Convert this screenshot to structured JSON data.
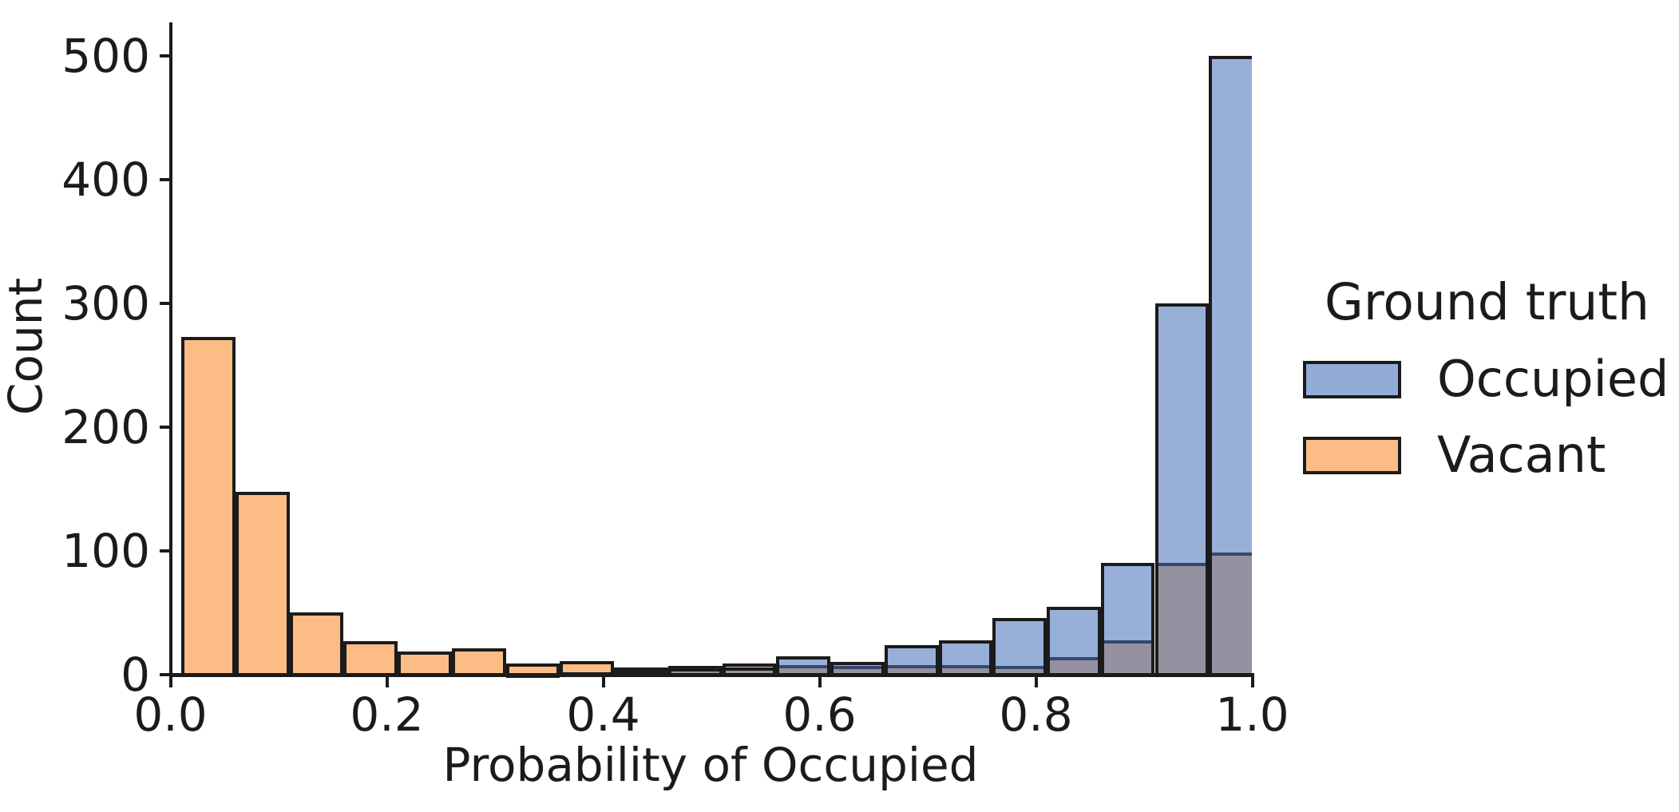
{
  "chart_data": {
    "type": "bar",
    "subtype": "layered-histogram",
    "title": "",
    "xlabel": "Probability of Occupied",
    "ylabel": "Count",
    "x_ticks": [
      "0.0",
      "0.2",
      "0.4",
      "0.6",
      "0.8",
      "1.0"
    ],
    "y_ticks": [
      "0",
      "100",
      "200",
      "300",
      "400",
      "500"
    ],
    "xlim": [
      0.0,
      1.0
    ],
    "ylim": [
      0,
      527
    ],
    "grid": "off",
    "bin_start": 0.01,
    "bin_width": 0.05,
    "clip_max": 1.0,
    "series": [
      {
        "name": "Vacant",
        "values": [
          275,
          150,
          52,
          29,
          21,
          23,
          11,
          13,
          8,
          9,
          11,
          10,
          9,
          10,
          10,
          9,
          16,
          30,
          92,
          101
        ]
      },
      {
        "name": "Occupied",
        "values": [
          0,
          0,
          0,
          0,
          0,
          0,
          2,
          4,
          6,
          7,
          8,
          17,
          12,
          26,
          30,
          48,
          57,
          92,
          302,
          502
        ]
      }
    ],
    "legend": {
      "title": "Ground truth",
      "position": "center right",
      "entries": [
        {
          "label": "Occupied",
          "color": "#93acd6"
        },
        {
          "label": "Vacant",
          "color": "#fbbc85"
        }
      ]
    },
    "colors": {
      "vacant_fill": "#fbbc85",
      "occupied_overlay_fill": "rgba(67,109,182,0.55)",
      "occupied_solid": "#93acd6",
      "overlap_observed": "#9b94a0",
      "edge": "#1b1b1b"
    }
  }
}
